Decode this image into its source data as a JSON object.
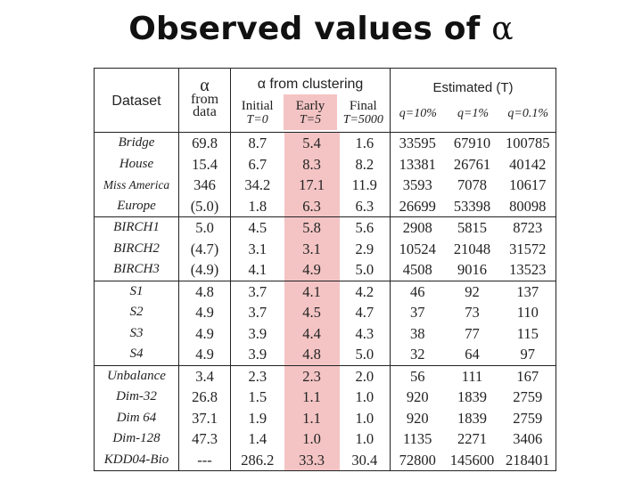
{
  "slide_title": "Observed values of",
  "title_symbol": "α",
  "headers": {
    "dataset": "Dataset",
    "alpha_symbol": "α",
    "alpha_from": "from",
    "alpha_data": "data",
    "clustering_title": "α from clustering",
    "initial": "Initial",
    "initial_t": "T=0",
    "early": "Early",
    "early_t": "T=5",
    "final": "Final",
    "final_t": "T=5000",
    "estimated_title": "Estimated (T)",
    "q1": "q=10%",
    "q2": "q=1%",
    "q3": "q=0.1%"
  },
  "rows": [
    {
      "name": "Bridge",
      "alpha": "69.8",
      "initial": "8.7",
      "early": "5.4",
      "final": "1.6",
      "q1": "33595",
      "q2": "67910",
      "q3": "100785"
    },
    {
      "name": "House",
      "alpha": "15.4",
      "initial": "6.7",
      "early": "8.3",
      "final": "8.2",
      "q1": "13381",
      "q2": "26761",
      "q3": "40142"
    },
    {
      "name": "Miss America",
      "alpha": "346",
      "initial": "34.2",
      "early": "17.1",
      "final": "11.9",
      "q1": "3593",
      "q2": "7078",
      "q3": "10617"
    },
    {
      "name": "Europe",
      "alpha": "(5.0)",
      "initial": "1.8",
      "early": "6.3",
      "final": "6.3",
      "q1": "26699",
      "q2": "53398",
      "q3": "80098"
    },
    {
      "name": "BIRCH1",
      "alpha": "5.0",
      "initial": "4.5",
      "early": "5.8",
      "final": "5.6",
      "q1": "2908",
      "q2": "5815",
      "q3": "8723"
    },
    {
      "name": "BIRCH2",
      "alpha": "(4.7)",
      "initial": "3.1",
      "early": "3.1",
      "final": "2.9",
      "q1": "10524",
      "q2": "21048",
      "q3": "31572"
    },
    {
      "name": "BIRCH3",
      "alpha": "(4.9)",
      "initial": "4.1",
      "early": "4.9",
      "final": "5.0",
      "q1": "4508",
      "q2": "9016",
      "q3": "13523"
    },
    {
      "name": "S1",
      "alpha": "4.8",
      "initial": "3.7",
      "early": "4.1",
      "final": "4.2",
      "q1": "46",
      "q2": "92",
      "q3": "137"
    },
    {
      "name": "S2",
      "alpha": "4.9",
      "initial": "3.7",
      "early": "4.5",
      "final": "4.7",
      "q1": "37",
      "q2": "73",
      "q3": "110"
    },
    {
      "name": "S3",
      "alpha": "4.9",
      "initial": "3.9",
      "early": "4.4",
      "final": "4.3",
      "q1": "38",
      "q2": "77",
      "q3": "115"
    },
    {
      "name": "S4",
      "alpha": "4.9",
      "initial": "3.9",
      "early": "4.8",
      "final": "5.0",
      "q1": "32",
      "q2": "64",
      "q3": "97"
    },
    {
      "name": "Unbalance",
      "alpha": "3.4",
      "initial": "2.3",
      "early": "2.3",
      "final": "2.0",
      "q1": "56",
      "q2": "111",
      "q3": "167"
    },
    {
      "name": "Dim-32",
      "alpha": "26.8",
      "initial": "1.5",
      "early": "1.1",
      "final": "1.0",
      "q1": "920",
      "q2": "1839",
      "q3": "2759"
    },
    {
      "name": "Dim 64",
      "alpha": "37.1",
      "initial": "1.9",
      "early": "1.1",
      "final": "1.0",
      "q1": "920",
      "q2": "1839",
      "q3": "2759"
    },
    {
      "name": "Dim-128",
      "alpha": "47.3",
      "initial": "1.4",
      "early": "1.0",
      "final": "1.0",
      "q1": "1135",
      "q2": "2271",
      "q3": "3406"
    },
    {
      "name": "KDD04-Bio",
      "alpha": "---",
      "initial": "286.2",
      "early": "33.3",
      "final": "30.4",
      "q1": "72800",
      "q2": "145600",
      "q3": "218401"
    }
  ],
  "colors": {
    "early_highlight": "#f4c4c4",
    "rule": "#222222"
  }
}
